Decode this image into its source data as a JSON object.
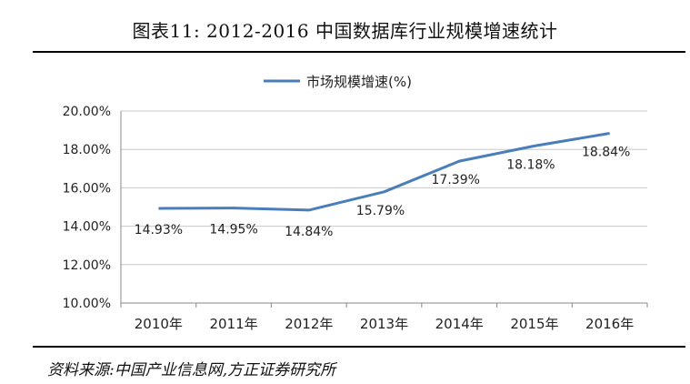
{
  "header": {
    "title": "图表11:   2012-2016 中国数据库行业规模增速统计"
  },
  "footer": {
    "source": "资料来源:中国产业信息网,方正证券研究所"
  },
  "chart_data": {
    "type": "line",
    "categories": [
      "2010年",
      "2011年",
      "2012年",
      "2013年",
      "2014年",
      "2015年",
      "2016年"
    ],
    "series": [
      {
        "name": "市场规模增速(%)",
        "values": [
          14.93,
          14.95,
          14.84,
          15.79,
          17.39,
          18.18,
          18.84
        ],
        "labels": [
          "14.93%",
          "14.95%",
          "14.84%",
          "15.79%",
          "17.39%",
          "18.18%",
          "18.84%"
        ],
        "color": "#4a7ebb"
      }
    ],
    "ylim": [
      10,
      20
    ],
    "yticks": [
      "10.00%",
      "12.00%",
      "14.00%",
      "16.00%",
      "18.00%",
      "20.00%"
    ],
    "grid": true,
    "legend": "top-center"
  }
}
